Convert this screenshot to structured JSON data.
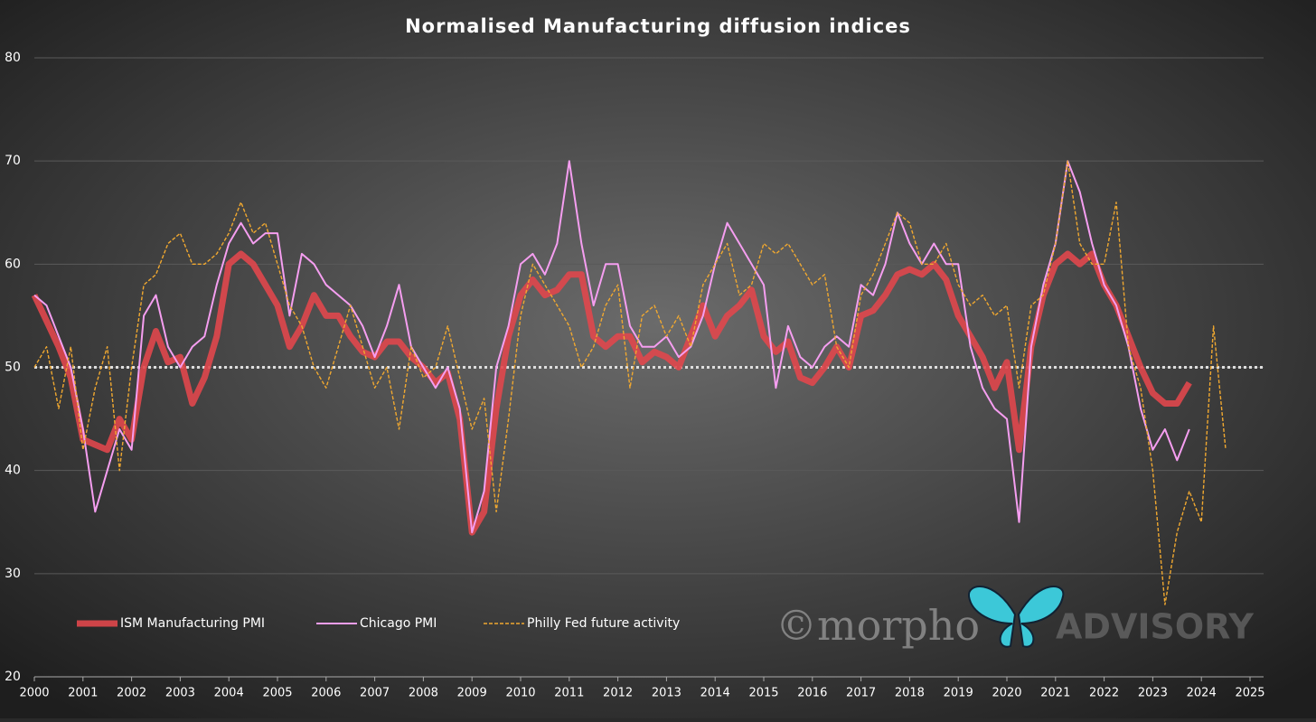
{
  "chart_data": {
    "type": "line",
    "title": "Normalised Manufacturing diffusion indices",
    "watermark": [
      "©morpho",
      "ADVISORY"
    ],
    "x": [
      2000,
      2000.25,
      2000.5,
      2000.75,
      2001,
      2001.25,
      2001.5,
      2001.75,
      2002,
      2002.25,
      2002.5,
      2002.75,
      2003,
      2003.25,
      2003.5,
      2003.75,
      2004,
      2004.25,
      2004.5,
      2004.75,
      2005,
      2005.25,
      2005.5,
      2005.75,
      2006,
      2006.25,
      2006.5,
      2006.75,
      2007,
      2007.25,
      2007.5,
      2007.75,
      2008,
      2008.25,
      2008.5,
      2008.75,
      2009,
      2009.25,
      2009.5,
      2009.75,
      2010,
      2010.25,
      2010.5,
      2010.75,
      2011,
      2011.25,
      2011.5,
      2011.75,
      2012,
      2012.25,
      2012.5,
      2012.75,
      2013,
      2013.25,
      2013.5,
      2013.75,
      2014,
      2014.25,
      2014.5,
      2014.75,
      2015,
      2015.25,
      2015.5,
      2015.75,
      2016,
      2016.25,
      2016.5,
      2016.75,
      2017,
      2017.25,
      2017.5,
      2017.75,
      2018,
      2018.25,
      2018.5,
      2018.75,
      2019,
      2019.25,
      2019.5,
      2019.75,
      2020,
      2020.25,
      2020.5,
      2020.75,
      2021,
      2021.25,
      2021.5,
      2021.75,
      2022,
      2022.25,
      2022.5,
      2022.75,
      2023,
      2023.25,
      2023.5,
      2023.75,
      2024,
      2024.25,
      2024.5
    ],
    "series": [
      {
        "name": "ISM Manufacturing PMI",
        "color": "#e0474c",
        "line_style": "thick",
        "values": [
          57,
          54.5,
          52,
          49,
          43,
          42.5,
          42,
          45,
          43,
          50,
          53.5,
          50.5,
          51,
          46.5,
          49,
          53,
          60,
          61,
          60,
          58,
          56,
          52,
          54,
          57,
          55,
          55,
          53,
          51.5,
          51,
          52.5,
          52.5,
          51,
          50,
          48.5,
          49.5,
          45,
          34,
          36,
          46,
          53,
          57,
          58.5,
          57,
          57.5,
          59,
          59,
          53,
          52,
          53,
          53,
          50.5,
          51.5,
          51,
          50,
          53,
          56,
          53,
          55,
          56,
          57.5,
          53,
          51.5,
          52.5,
          49,
          48.5,
          50,
          52,
          50,
          55,
          55.5,
          57,
          59,
          59.5,
          59,
          60,
          58.5,
          55,
          53,
          51,
          48,
          50.5,
          42,
          52,
          57,
          60,
          61,
          60,
          61,
          58,
          56,
          53,
          50,
          47.5,
          46.5,
          46.5,
          48.5,
          null,
          null,
          null
        ]
      },
      {
        "name": "Chicago PMI",
        "color": "#f59ef0",
        "line_style": "solid",
        "values": [
          57,
          56,
          53,
          50,
          44,
          36,
          40,
          44,
          42,
          55,
          57,
          52,
          50,
          52,
          53,
          58,
          62,
          64,
          62,
          63,
          63,
          55,
          61,
          60,
          58,
          57,
          56,
          54,
          51,
          54,
          58,
          52,
          50,
          48,
          50,
          46,
          34,
          38,
          50,
          54,
          60,
          61,
          59,
          62,
          70,
          62,
          56,
          60,
          60,
          54,
          52,
          52,
          53,
          51,
          52,
          55,
          60,
          64,
          62,
          60,
          58,
          48,
          54,
          51,
          50,
          52,
          53,
          52,
          58,
          57,
          60,
          65,
          62,
          60,
          62,
          60,
          60,
          52,
          48,
          46,
          45,
          35,
          52,
          58,
          62,
          70,
          67,
          62,
          58,
          56,
          52,
          46,
          42,
          44,
          41,
          44,
          null,
          null,
          null
        ]
      },
      {
        "name": "Philly Fed future activity",
        "color": "#f0a830",
        "line_style": "dashed",
        "values": [
          50,
          52,
          46,
          52,
          42,
          48,
          52,
          40,
          50,
          58,
          59,
          62,
          63,
          60,
          60,
          61,
          63,
          66,
          63,
          64,
          60,
          56,
          54,
          50,
          48,
          52,
          56,
          52,
          48,
          50,
          44,
          52,
          49,
          50,
          54,
          49,
          44,
          47,
          36,
          45,
          55,
          60,
          58,
          56,
          54,
          50,
          52,
          56,
          58,
          48,
          55,
          56,
          53,
          55,
          52,
          58,
          60,
          62,
          57,
          58,
          62,
          61,
          62,
          60,
          58,
          59,
          52,
          50,
          57,
          59,
          62,
          65,
          64,
          60,
          60,
          62,
          58,
          56,
          57,
          55,
          56,
          48,
          56,
          57,
          62,
          70,
          62,
          60,
          60,
          66,
          52,
          48,
          40,
          27,
          34,
          38,
          35,
          54,
          42
        ]
      }
    ],
    "reference_line": 50,
    "xlim": [
      2000,
      2025
    ],
    "xticks": [
      2000,
      2001,
      2002,
      2003,
      2004,
      2005,
      2006,
      2007,
      2008,
      2009,
      2010,
      2011,
      2012,
      2013,
      2014,
      2015,
      2016,
      2017,
      2018,
      2019,
      2020,
      2021,
      2022,
      2023,
      2024,
      2025
    ],
    "ylim": [
      20,
      80
    ],
    "yticks": [
      20,
      30,
      40,
      50,
      60,
      70,
      80
    ],
    "grid": true
  }
}
